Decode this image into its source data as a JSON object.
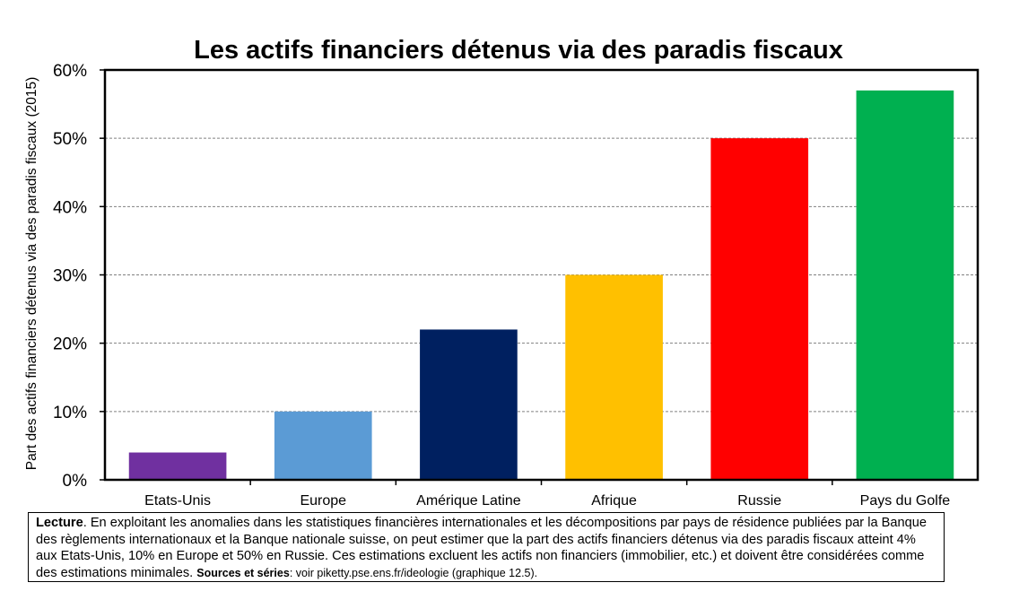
{
  "chart_data": {
    "type": "bar",
    "title": "Les actifs financiers détenus via des paradis fiscaux",
    "ylabel": "Part des actifs financiers détenus via des paradis fiscaux (2015)",
    "xlabel": "",
    "categories": [
      "Etats-Unis",
      "Europe",
      "Amérique Latine",
      "Afrique",
      "Russie",
      "Pays du Golfe"
    ],
    "values": [
      4,
      10,
      22,
      30,
      50,
      57
    ],
    "colors": [
      "#7030a0",
      "#5b9bd5",
      "#002060",
      "#ffc000",
      "#ff0000",
      "#00b050"
    ],
    "yticks": [
      "0%",
      "10%",
      "20%",
      "30%",
      "40%",
      "50%",
      "60%"
    ],
    "ylim": [
      0,
      60
    ],
    "grid": true,
    "legend": "none"
  },
  "note": {
    "lead": "Lecture",
    "text": ". En exploitant les anomalies dans les statistiques financières internationales et les décompositions par pays de résidence publiées par la Banque des règlements internationaux et la Banque nationale suisse, on peut estimer que la part des actifs financiers détenus via des paradis fiscaux atteint 4% aux Etats-Unis, 10% en Europe et 50% en Russie. Ces estimations excluent les actifs non financiers (immobilier, etc.) et doivent être considérées comme des estimations minimales.",
    "sources_label": "Sources et séries",
    "sources_text": ": voir piketty.pse.ens.fr/ideologie (graphique 12.5)."
  }
}
